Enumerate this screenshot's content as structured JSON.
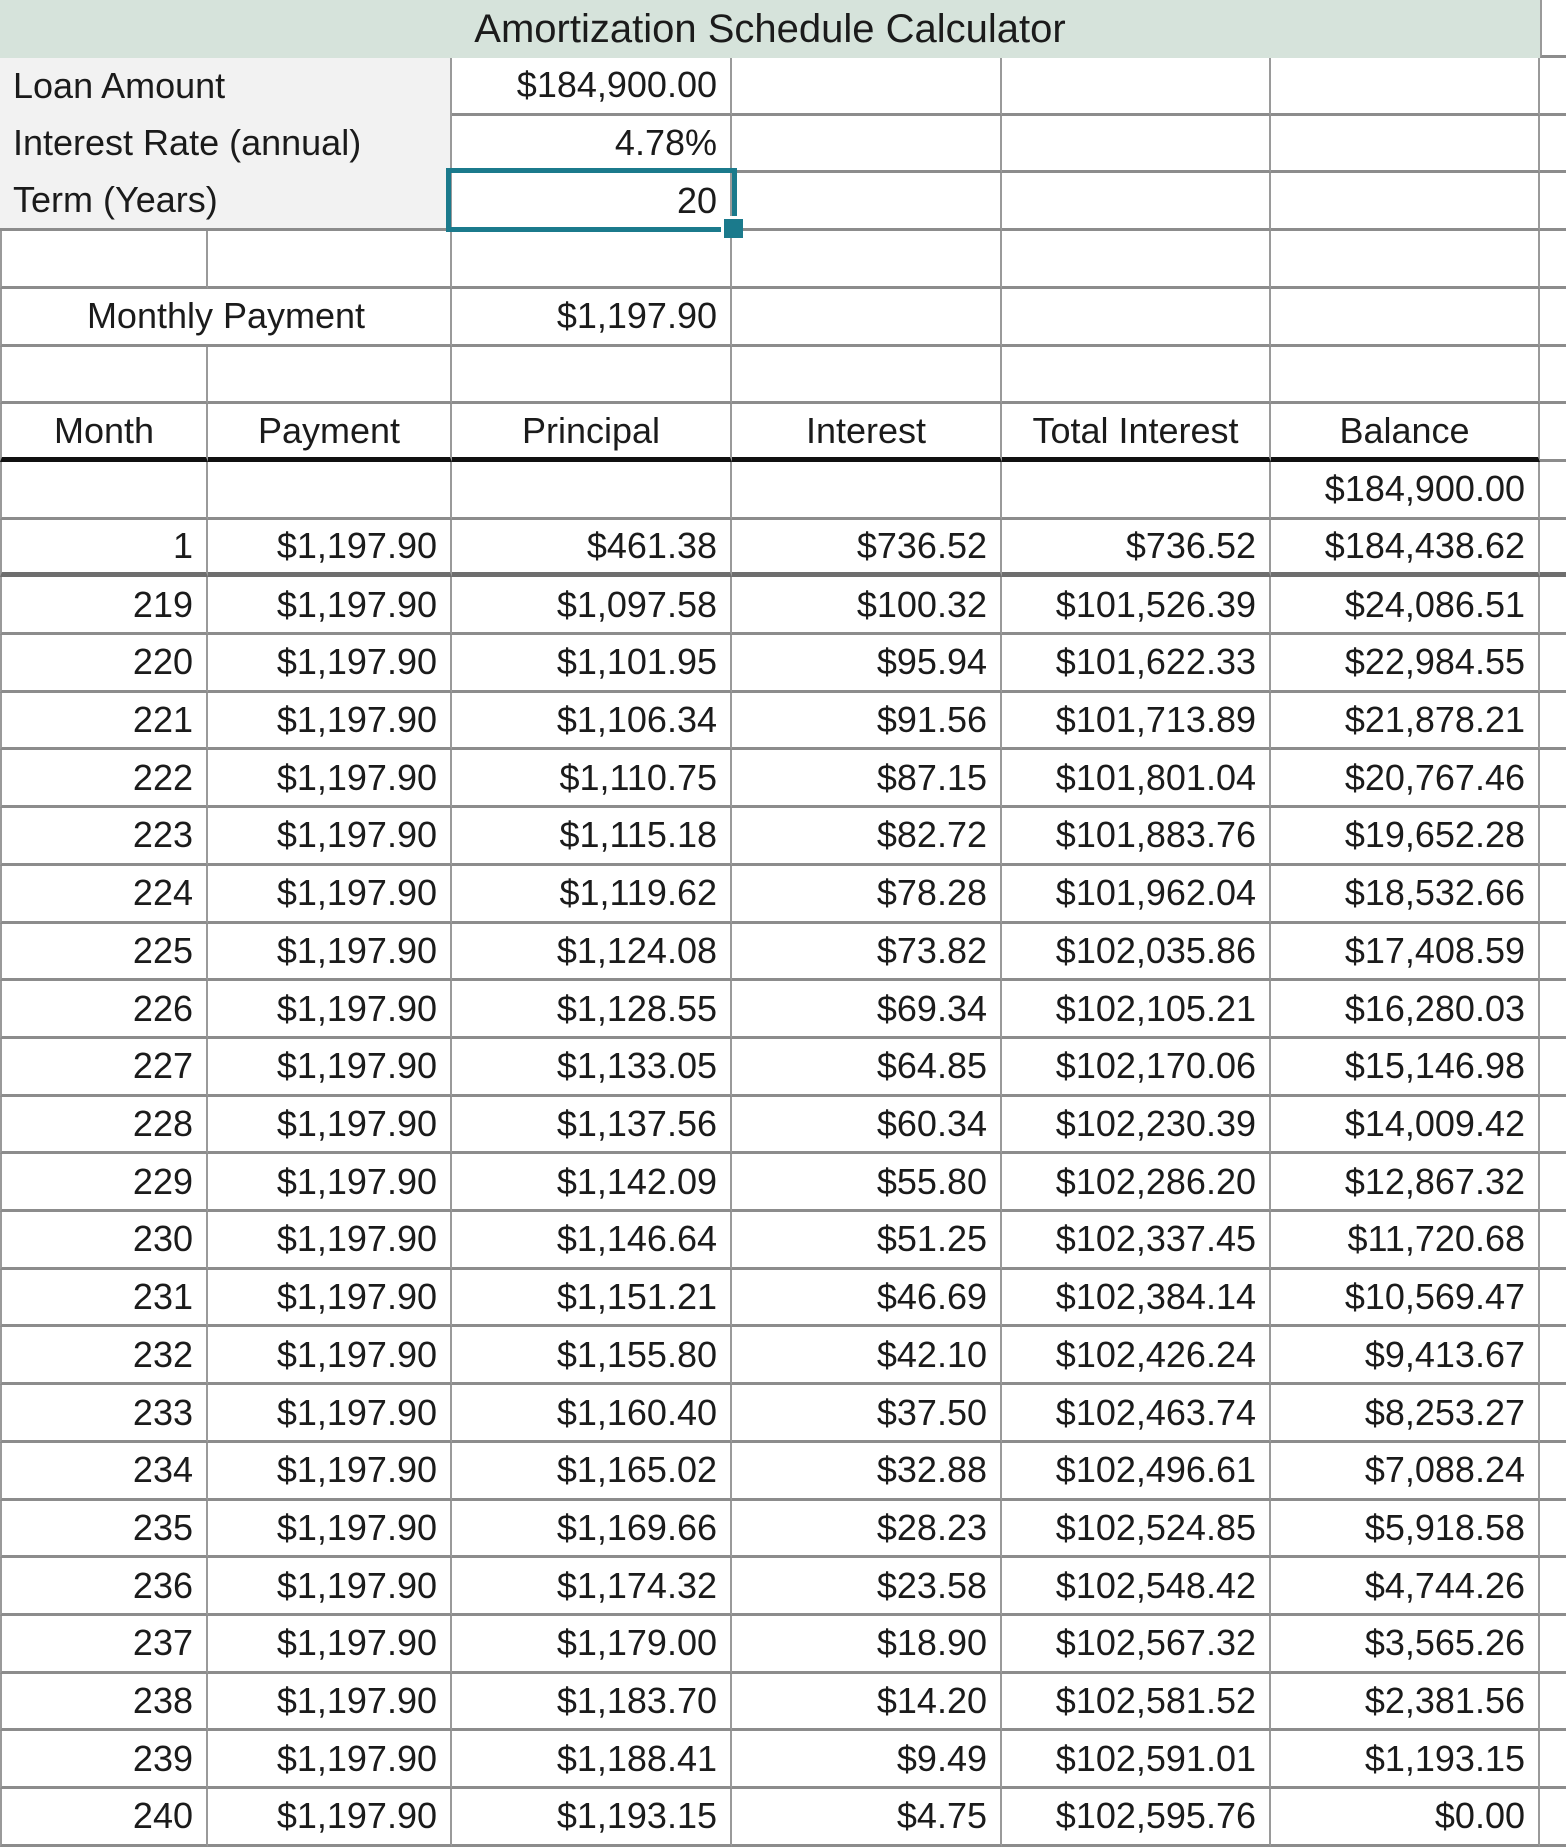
{
  "title": "Amortization Schedule Calculator",
  "inputs": [
    {
      "label": "Loan Amount",
      "value": "$184,900.00"
    },
    {
      "label": "Interest Rate (annual)",
      "value": "4.78%"
    },
    {
      "label": "Term (Years)",
      "value": "20",
      "selected": true
    }
  ],
  "monthly_payment": {
    "label": "Monthly Payment",
    "value": "$1,197.90"
  },
  "table": {
    "headers": [
      "Month",
      "Payment",
      "Principal",
      "Interest",
      "Total Interest",
      "Balance"
    ],
    "initial_balance": {
      "balance": "$184,900.00"
    },
    "rows": [
      {
        "month": 1,
        "payment": "$1,197.90",
        "principal": "$461.38",
        "interest": "$736.52",
        "total_interest": "$736.52",
        "balance": "$184,438.62"
      },
      {
        "month": 219,
        "payment": "$1,197.90",
        "principal": "$1,097.58",
        "interest": "$100.32",
        "total_interest": "$101,526.39",
        "balance": "$24,086.51"
      },
      {
        "month": 220,
        "payment": "$1,197.90",
        "principal": "$1,101.95",
        "interest": "$95.94",
        "total_interest": "$101,622.33",
        "balance": "$22,984.55"
      },
      {
        "month": 221,
        "payment": "$1,197.90",
        "principal": "$1,106.34",
        "interest": "$91.56",
        "total_interest": "$101,713.89",
        "balance": "$21,878.21"
      },
      {
        "month": 222,
        "payment": "$1,197.90",
        "principal": "$1,110.75",
        "interest": "$87.15",
        "total_interest": "$101,801.04",
        "balance": "$20,767.46"
      },
      {
        "month": 223,
        "payment": "$1,197.90",
        "principal": "$1,115.18",
        "interest": "$82.72",
        "total_interest": "$101,883.76",
        "balance": "$19,652.28"
      },
      {
        "month": 224,
        "payment": "$1,197.90",
        "principal": "$1,119.62",
        "interest": "$78.28",
        "total_interest": "$101,962.04",
        "balance": "$18,532.66"
      },
      {
        "month": 225,
        "payment": "$1,197.90",
        "principal": "$1,124.08",
        "interest": "$73.82",
        "total_interest": "$102,035.86",
        "balance": "$17,408.59"
      },
      {
        "month": 226,
        "payment": "$1,197.90",
        "principal": "$1,128.55",
        "interest": "$69.34",
        "total_interest": "$102,105.21",
        "balance": "$16,280.03"
      },
      {
        "month": 227,
        "payment": "$1,197.90",
        "principal": "$1,133.05",
        "interest": "$64.85",
        "total_interest": "$102,170.06",
        "balance": "$15,146.98"
      },
      {
        "month": 228,
        "payment": "$1,197.90",
        "principal": "$1,137.56",
        "interest": "$60.34",
        "total_interest": "$102,230.39",
        "balance": "$14,009.42"
      },
      {
        "month": 229,
        "payment": "$1,197.90",
        "principal": "$1,142.09",
        "interest": "$55.80",
        "total_interest": "$102,286.20",
        "balance": "$12,867.32"
      },
      {
        "month": 230,
        "payment": "$1,197.90",
        "principal": "$1,146.64",
        "interest": "$51.25",
        "total_interest": "$102,337.45",
        "balance": "$11,720.68"
      },
      {
        "month": 231,
        "payment": "$1,197.90",
        "principal": "$1,151.21",
        "interest": "$46.69",
        "total_interest": "$102,384.14",
        "balance": "$10,569.47"
      },
      {
        "month": 232,
        "payment": "$1,197.90",
        "principal": "$1,155.80",
        "interest": "$42.10",
        "total_interest": "$102,426.24",
        "balance": "$9,413.67"
      },
      {
        "month": 233,
        "payment": "$1,197.90",
        "principal": "$1,160.40",
        "interest": "$37.50",
        "total_interest": "$102,463.74",
        "balance": "$8,253.27"
      },
      {
        "month": 234,
        "payment": "$1,197.90",
        "principal": "$1,165.02",
        "interest": "$32.88",
        "total_interest": "$102,496.61",
        "balance": "$7,088.24"
      },
      {
        "month": 235,
        "payment": "$1,197.90",
        "principal": "$1,169.66",
        "interest": "$28.23",
        "total_interest": "$102,524.85",
        "balance": "$5,918.58"
      },
      {
        "month": 236,
        "payment": "$1,197.90",
        "principal": "$1,174.32",
        "interest": "$23.58",
        "total_interest": "$102,548.42",
        "balance": "$4,744.26"
      },
      {
        "month": 237,
        "payment": "$1,197.90",
        "principal": "$1,179.00",
        "interest": "$18.90",
        "total_interest": "$102,567.32",
        "balance": "$3,565.26"
      },
      {
        "month": 238,
        "payment": "$1,197.90",
        "principal": "$1,183.70",
        "interest": "$14.20",
        "total_interest": "$102,581.52",
        "balance": "$2,381.56"
      },
      {
        "month": 239,
        "payment": "$1,197.90",
        "principal": "$1,188.41",
        "interest": "$9.49",
        "total_interest": "$102,591.01",
        "balance": "$1,193.15"
      },
      {
        "month": 240,
        "payment": "$1,197.90",
        "principal": "$1,193.15",
        "interest": "$4.75",
        "total_interest": "$102,595.76",
        "balance": "$0.00"
      }
    ]
  },
  "colors": {
    "title_bg": "#d6e3db",
    "label_bg": "#f2f2f2",
    "selection": "#1b7a8c",
    "grid_v": "#9a9a9a",
    "grid_h": "#8c8c8c"
  }
}
